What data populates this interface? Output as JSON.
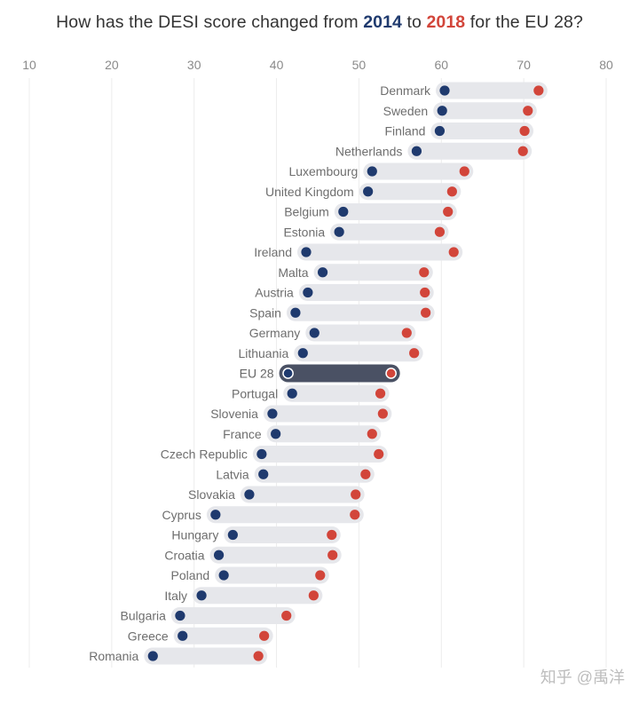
{
  "title": {
    "prefix": "How has the DESI score changed from ",
    "year_a": "2014",
    "mid": " to ",
    "year_b": "2018",
    "suffix": " for the EU 28?"
  },
  "colors": {
    "y2014": "#1f3a6e",
    "y2018": "#d2453a",
    "bar": "#e6e7eb",
    "highlight_bar": "#4a5164"
  },
  "watermark": "知乎 @禹洋",
  "chart_data": {
    "type": "dumbbell",
    "x_ticks": [
      10,
      20,
      30,
      40,
      50,
      60,
      70,
      80
    ],
    "xlim": [
      10,
      80
    ],
    "grid": "vertical",
    "highlight": "EU 28",
    "series": [
      {
        "name": "2014",
        "color": "#1f3a6e"
      },
      {
        "name": "2018",
        "color": "#d2453a"
      }
    ],
    "rows": [
      {
        "country": "Denmark",
        "v2014": 60.4,
        "v2018": 71.8
      },
      {
        "country": "Sweden",
        "v2014": 60.1,
        "v2018": 70.5
      },
      {
        "country": "Finland",
        "v2014": 59.8,
        "v2018": 70.1
      },
      {
        "country": "Netherlands",
        "v2014": 57.0,
        "v2018": 69.9
      },
      {
        "country": "Luxembourg",
        "v2014": 51.6,
        "v2018": 62.8
      },
      {
        "country": "United Kingdom",
        "v2014": 51.1,
        "v2018": 61.3
      },
      {
        "country": "Belgium",
        "v2014": 48.1,
        "v2018": 60.8
      },
      {
        "country": "Estonia",
        "v2014": 47.6,
        "v2018": 59.8
      },
      {
        "country": "Ireland",
        "v2014": 43.6,
        "v2018": 61.5
      },
      {
        "country": "Malta",
        "v2014": 45.6,
        "v2018": 57.9
      },
      {
        "country": "Austria",
        "v2014": 43.8,
        "v2018": 58.0
      },
      {
        "country": "Spain",
        "v2014": 42.3,
        "v2018": 58.1
      },
      {
        "country": "Germany",
        "v2014": 44.6,
        "v2018": 55.8
      },
      {
        "country": "Lithuania",
        "v2014": 43.2,
        "v2018": 56.7
      },
      {
        "country": "EU 28",
        "v2014": 41.4,
        "v2018": 53.9
      },
      {
        "country": "Portugal",
        "v2014": 41.9,
        "v2018": 52.6
      },
      {
        "country": "Slovenia",
        "v2014": 39.5,
        "v2018": 52.9
      },
      {
        "country": "France",
        "v2014": 39.9,
        "v2018": 51.6
      },
      {
        "country": "Czech Republic",
        "v2014": 38.2,
        "v2018": 52.4
      },
      {
        "country": "Latvia",
        "v2014": 38.4,
        "v2018": 50.8
      },
      {
        "country": "Slovakia",
        "v2014": 36.7,
        "v2018": 49.6
      },
      {
        "country": "Cyprus",
        "v2014": 32.6,
        "v2018": 49.5
      },
      {
        "country": "Hungary",
        "v2014": 34.7,
        "v2018": 46.7
      },
      {
        "country": "Croatia",
        "v2014": 33.0,
        "v2018": 46.8
      },
      {
        "country": "Poland",
        "v2014": 33.6,
        "v2018": 45.3
      },
      {
        "country": "Italy",
        "v2014": 30.9,
        "v2018": 44.5
      },
      {
        "country": "Bulgaria",
        "v2014": 28.3,
        "v2018": 41.2
      },
      {
        "country": "Greece",
        "v2014": 28.6,
        "v2018": 38.5
      },
      {
        "country": "Romania",
        "v2014": 25.0,
        "v2018": 37.8
      }
    ]
  }
}
